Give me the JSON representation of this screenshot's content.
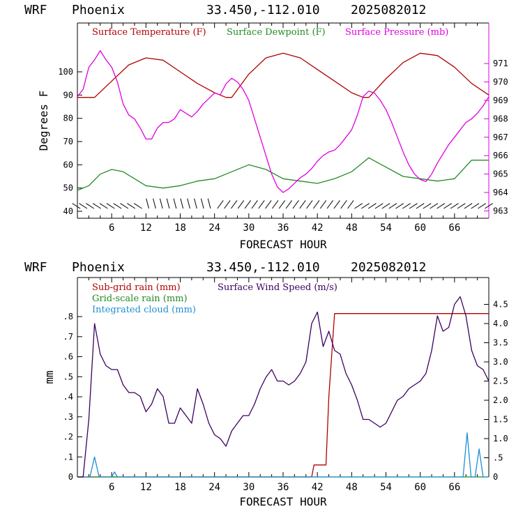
{
  "chart_data": [
    {
      "type": "line",
      "header": {
        "model": "WRF",
        "location": "Phoenix",
        "coords": "33.450,-112.010",
        "run": "2025082012"
      },
      "title": "",
      "xlabel": "FORECAST HOUR",
      "ylabel": "Degrees F",
      "xlim": [
        0,
        72
      ],
      "ylim": [
        37,
        121
      ],
      "y2lim": [
        962.6,
        973.2
      ],
      "xticks": [
        "6",
        "12",
        "18",
        "24",
        "30",
        "36",
        "42",
        "48",
        "54",
        "60",
        "66"
      ],
      "yticks": [
        "40",
        "50",
        "60",
        "70",
        "80",
        "90",
        "100"
      ],
      "y2ticks": [
        "963",
        "964",
        "965",
        "966",
        "967",
        "968",
        "969",
        "970",
        "971"
      ],
      "grid": false,
      "legend": "top",
      "colors": {
        "temperature": "#b00000",
        "dewpoint": "#228b22",
        "pressure": "#e000e0",
        "axis_right": "#e000e0"
      },
      "series": [
        {
          "name": "Surface Temperature (F)",
          "axis": "left",
          "color": "#b00000",
          "x": [
            0,
            3,
            6,
            9,
            12,
            15,
            18,
            21,
            24,
            26,
            27,
            30,
            33,
            36,
            39,
            42,
            45,
            48,
            50,
            51,
            54,
            57,
            60,
            63,
            66,
            69,
            72
          ],
          "y": [
            89,
            89,
            96,
            103,
            106,
            105,
            100,
            95,
            91,
            89,
            89,
            99,
            106,
            108,
            106,
            101,
            96,
            91,
            89,
            89,
            97,
            104,
            108,
            107,
            102,
            95,
            90
          ]
        },
        {
          "name": "Surface Dewpoint (F)",
          "axis": "left",
          "color": "#228b22",
          "x": [
            0,
            2,
            4,
            6,
            8,
            10,
            12,
            15,
            18,
            21,
            24,
            27,
            30,
            33,
            36,
            39,
            42,
            45,
            48,
            51,
            54,
            57,
            60,
            63,
            66,
            69,
            72
          ],
          "y": [
            49,
            51,
            56,
            58,
            57,
            54,
            51,
            50,
            51,
            53,
            54,
            57,
            60,
            58,
            54,
            53,
            52,
            54,
            57,
            63,
            59,
            55,
            54,
            53,
            54,
            62,
            62
          ]
        },
        {
          "name": "Surface Pressure (mb)",
          "axis": "right",
          "color": "#e000e0",
          "x": [
            0,
            1,
            2,
            3,
            4,
            5,
            6,
            7,
            8,
            9,
            10,
            11,
            12,
            13,
            14,
            15,
            16,
            17,
            18,
            19,
            20,
            21,
            22,
            23,
            24,
            25,
            26,
            27,
            28,
            29,
            30,
            31,
            32,
            33,
            34,
            35,
            36,
            37,
            38,
            39,
            40,
            41,
            42,
            43,
            44,
            45,
            46,
            47,
            48,
            49,
            50,
            51,
            52,
            53,
            54,
            55,
            56,
            57,
            58,
            59,
            60,
            61,
            62,
            63,
            64,
            65,
            66,
            67,
            68,
            69,
            70,
            71,
            72
          ],
          "y": [
            969.2,
            969.6,
            970.8,
            971.2,
            971.7,
            971.2,
            970.8,
            970.0,
            968.8,
            968.2,
            968.0,
            967.5,
            966.9,
            966.9,
            967.5,
            967.8,
            967.8,
            968.0,
            968.5,
            968.3,
            968.1,
            968.4,
            968.8,
            969.1,
            969.4,
            969.3,
            969.9,
            970.2,
            970.0,
            969.6,
            969.0,
            968.0,
            967.0,
            966.0,
            965.0,
            964.3,
            964.0,
            964.2,
            964.5,
            964.8,
            965.0,
            965.3,
            965.7,
            966.0,
            966.2,
            966.3,
            966.6,
            967.0,
            967.4,
            968.2,
            969.2,
            969.5,
            969.4,
            969.0,
            968.5,
            967.8,
            967.0,
            966.2,
            965.5,
            965.0,
            964.7,
            964.6,
            965.0,
            965.6,
            966.1,
            966.6,
            967.0,
            967.4,
            967.8,
            968.0,
            968.3,
            968.7,
            969.2
          ]
        }
      ],
      "wind_barbs": "row of wind barbs along the bottom of the upper panel"
    },
    {
      "type": "line",
      "header": {
        "model": "WRF",
        "location": "Phoenix",
        "coords": "33.450,-112.010",
        "run": "2025082012"
      },
      "title": "",
      "xlabel": "FORECAST HOUR",
      "ylabel": "mm",
      "xlim": [
        0,
        72
      ],
      "ylim": [
        0,
        0.995
      ],
      "y2lim": [
        0,
        5.2
      ],
      "xticks": [
        "6",
        "12",
        "18",
        "24",
        "30",
        "36",
        "42",
        "48",
        "54",
        "60",
        "66"
      ],
      "yticks": [
        "0",
        ".1",
        ".2",
        ".3",
        ".4",
        ".5",
        ".6",
        ".7",
        ".8"
      ],
      "y2ticks": [
        "0",
        ".5",
        "1.0",
        "1.5",
        "2.0",
        "2.5",
        "3.0",
        "3.5",
        "4.0",
        "4.5"
      ],
      "grid": false,
      "legend": "top-left",
      "colors": {
        "subgrid": "#b00000",
        "gridscale": "#228b22",
        "cloud": "#1e8fd0",
        "wind": "#3a0060"
      },
      "series": [
        {
          "name": "Sub-grid rain (mm)",
          "axis": "left",
          "color": "#b00000",
          "x": [
            0,
            41,
            41.4,
            43.5,
            44,
            45,
            72
          ],
          "y": [
            0,
            0,
            0.06,
            0.06,
            0.4,
            0.815,
            0.815
          ]
        },
        {
          "name": "Grid-scale rain (mm)",
          "axis": "left",
          "color": "#228b22",
          "x": [
            0,
            72
          ],
          "y": [
            0,
            0
          ]
        },
        {
          "name": "Integrated cloud (mm)",
          "axis": "left",
          "color": "#1e8fd0",
          "x": [
            0,
            2.2,
            3,
            3.8,
            4.2,
            6,
            6.5,
            7,
            7.5,
            67.5,
            68.2,
            68.9,
            69.6,
            70.3,
            71,
            71.8,
            72
          ],
          "y": [
            0,
            0,
            0.1,
            0,
            0,
            0,
            0.025,
            0,
            0,
            0,
            0.22,
            0,
            0,
            0.14,
            0,
            0,
            0
          ]
        },
        {
          "name": "Surface Wind Speed (m/s)",
          "axis": "right",
          "color": "#3a0060",
          "x": [
            0,
            1,
            2,
            3,
            4,
            5,
            6,
            7,
            8,
            9,
            10,
            11,
            12,
            13,
            14,
            15,
            16,
            17,
            18,
            19,
            20,
            21,
            22,
            23,
            24,
            25,
            26,
            27,
            28,
            29,
            30,
            31,
            32,
            33,
            34,
            35,
            36,
            37,
            38,
            39,
            40,
            41,
            42,
            43,
            44,
            45,
            46,
            47,
            48,
            49,
            50,
            51,
            52,
            53,
            54,
            55,
            56,
            57,
            58,
            59,
            60,
            61,
            62,
            63,
            64,
            65,
            66,
            67,
            68,
            69,
            70,
            71,
            72
          ],
          "y": [
            0,
            0,
            1.5,
            4.0,
            3.2,
            2.9,
            2.8,
            2.8,
            2.4,
            2.2,
            2.2,
            2.1,
            1.7,
            1.9,
            2.3,
            2.1,
            1.4,
            1.4,
            1.8,
            1.6,
            1.4,
            2.3,
            1.9,
            1.4,
            1.1,
            1.0,
            0.8,
            1.2,
            1.4,
            1.6,
            1.6,
            1.9,
            2.3,
            2.6,
            2.8,
            2.5,
            2.5,
            2.4,
            2.5,
            2.7,
            3.0,
            4.0,
            4.3,
            3.4,
            3.8,
            3.3,
            3.2,
            2.7,
            2.4,
            2.0,
            1.5,
            1.5,
            1.4,
            1.3,
            1.4,
            1.7,
            2.0,
            2.1,
            2.3,
            2.4,
            2.5,
            2.7,
            3.3,
            4.2,
            3.8,
            3.9,
            4.5,
            4.7,
            4.2,
            3.3,
            2.9,
            2.8,
            2.5
          ]
        }
      ]
    }
  ]
}
